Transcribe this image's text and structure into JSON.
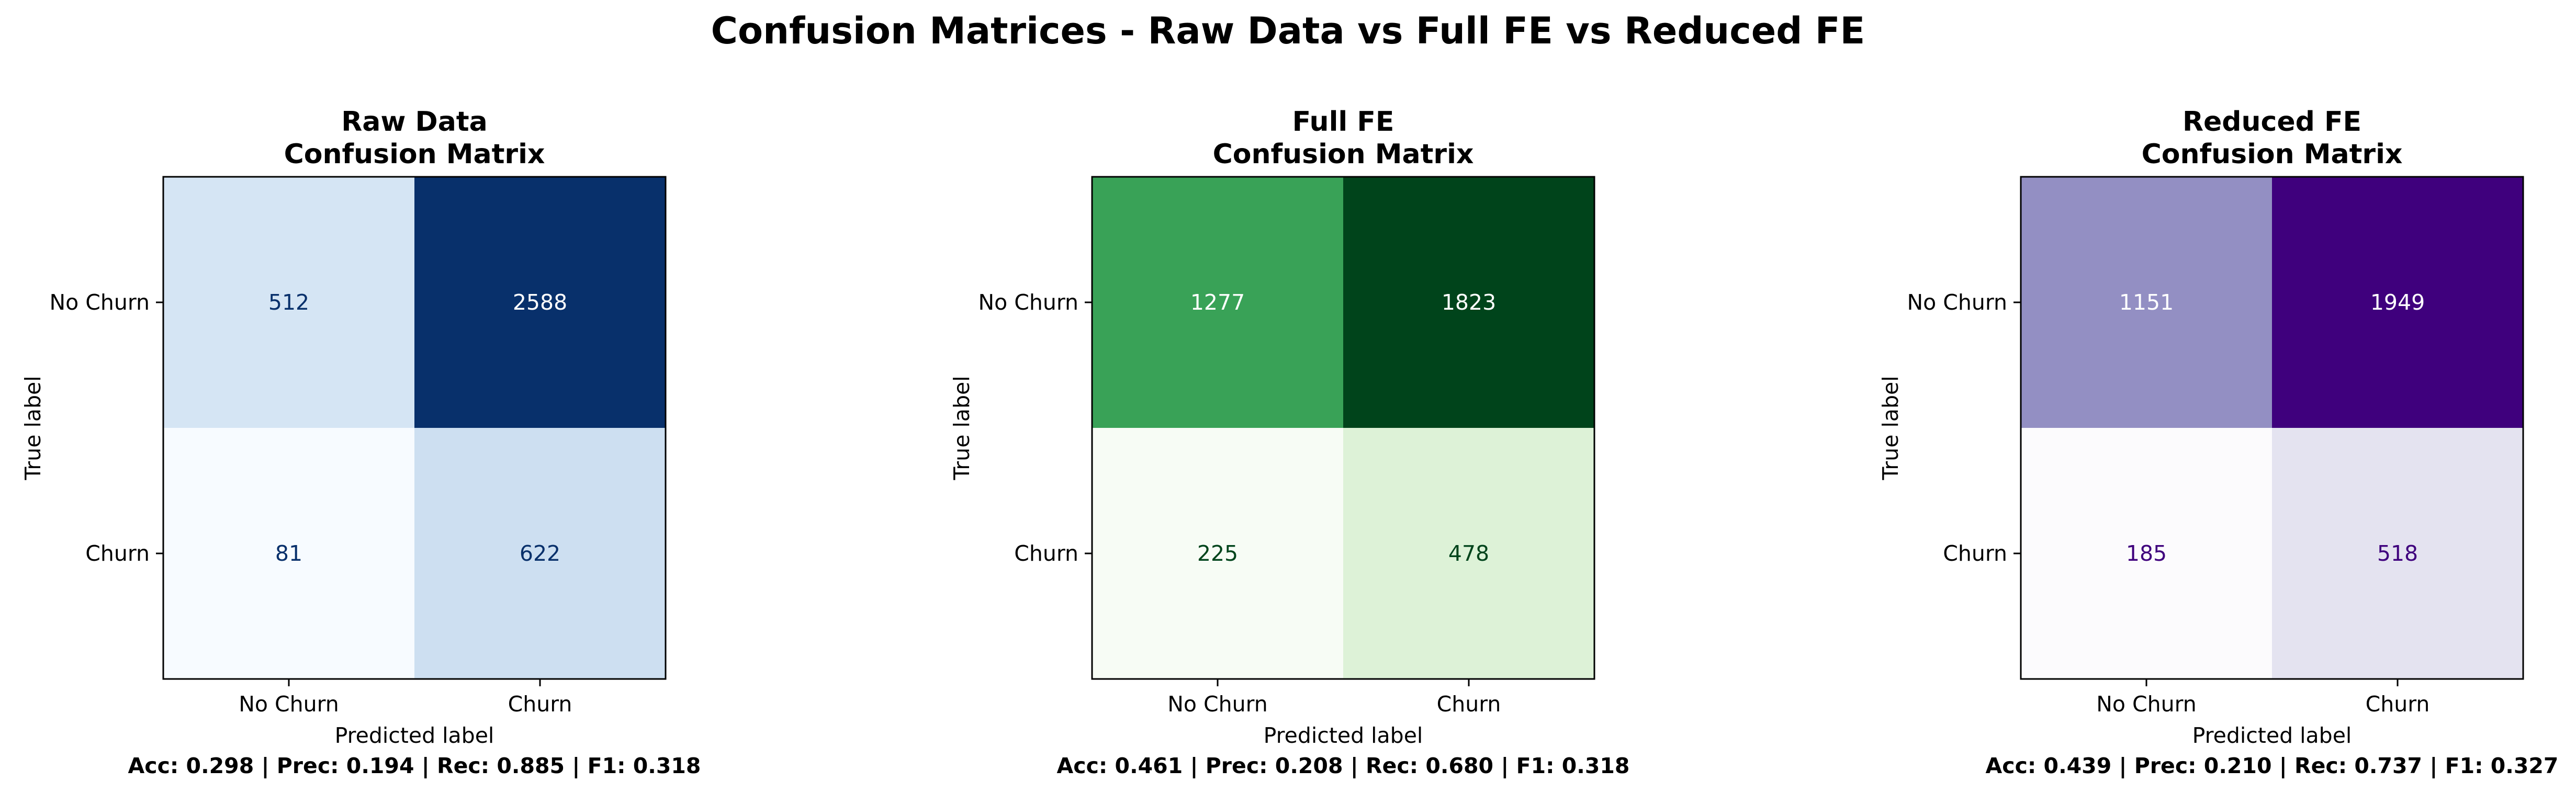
{
  "title": "Confusion Matrices - Raw Data vs Full FE vs Reduced FE",
  "chart_data": [
    {
      "type": "heatmap",
      "title_line1": "Raw Data",
      "title_line2": "Confusion Matrix",
      "xlabel": "Predicted label",
      "ylabel": "True label",
      "x_categories": [
        "No Churn",
        "Churn"
      ],
      "y_categories": [
        "No Churn",
        "Churn"
      ],
      "matrix": [
        [
          512,
          2588
        ],
        [
          81,
          622
        ]
      ],
      "colormap": "Blues",
      "colors": {
        "low": "#f7fbff",
        "high": "#08306b",
        "text_dark": "#08306b",
        "text_light": "#ffffff"
      },
      "metrics": "Acc: 0.298 | Prec: 0.194 | Rec: 0.885 | F1: 0.318"
    },
    {
      "type": "heatmap",
      "title_line1": "Full FE",
      "title_line2": "Confusion Matrix",
      "xlabel": "Predicted label",
      "ylabel": "True label",
      "x_categories": [
        "No Churn",
        "Churn"
      ],
      "y_categories": [
        "No Churn",
        "Churn"
      ],
      "matrix": [
        [
          1277,
          1823
        ],
        [
          225,
          478
        ]
      ],
      "colormap": "Greens",
      "colors": {
        "low": "#f7fcf5",
        "high": "#00441b",
        "text_dark": "#00441b",
        "text_light": "#ffffff"
      },
      "metrics": "Acc: 0.461 | Prec: 0.208 | Rec: 0.680 | F1: 0.318"
    },
    {
      "type": "heatmap",
      "title_line1": "Reduced FE",
      "title_line2": "Confusion Matrix",
      "xlabel": "Predicted label",
      "ylabel": "True label",
      "x_categories": [
        "No Churn",
        "Churn"
      ],
      "y_categories": [
        "No Churn",
        "Churn"
      ],
      "matrix": [
        [
          1151,
          1949
        ],
        [
          185,
          518
        ]
      ],
      "colormap": "Purples",
      "colors": {
        "low": "#fcfbfd",
        "high": "#3f007d",
        "text_dark": "#3f007d",
        "text_light": "#ffffff"
      },
      "metrics": "Acc: 0.439 | Prec: 0.210 | Rec: 0.737 | F1: 0.327"
    }
  ]
}
